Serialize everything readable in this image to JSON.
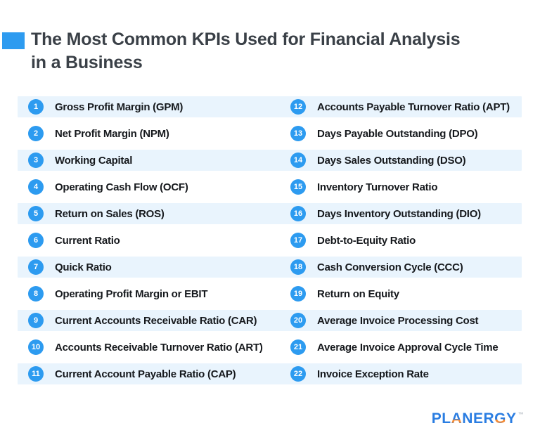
{
  "colors": {
    "accent_blue": "#2D9BF0",
    "row_band": "#E9F4FD",
    "title_text": "#3A4047",
    "item_text": "#16191D",
    "logo_blue": "#2A7DE2",
    "logo_orange": "#F28B38"
  },
  "header": {
    "title_line1": "The Most Common KPIs Used for Financial Analysis",
    "title_line2": "in a Business"
  },
  "kpis": {
    "left": [
      {
        "num": "1",
        "label": "Gross Profit Margin (GPM)"
      },
      {
        "num": "2",
        "label": "Net Profit Margin (NPM)"
      },
      {
        "num": "3",
        "label": "Working Capital"
      },
      {
        "num": "4",
        "label": "Operating Cash Flow (OCF)"
      },
      {
        "num": "5",
        "label": "Return on Sales (ROS)"
      },
      {
        "num": "6",
        "label": "Current Ratio"
      },
      {
        "num": "7",
        "label": "Quick Ratio"
      },
      {
        "num": "8",
        "label": "Operating Profit Margin or EBIT"
      },
      {
        "num": "9",
        "label": "Current Accounts Receivable Ratio (CAR)"
      },
      {
        "num": "10",
        "label": "Accounts Receivable Turnover Ratio (ART)"
      },
      {
        "num": "11",
        "label": "Current Account Payable Ratio (CAP)"
      }
    ],
    "right": [
      {
        "num": "12",
        "label": "Accounts Payable Turnover Ratio (APT)"
      },
      {
        "num": "13",
        "label": "Days Payable Outstanding (DPO)"
      },
      {
        "num": "14",
        "label": "Days Sales Outstanding (DSO)"
      },
      {
        "num": "15",
        "label": "Inventory Turnover Ratio"
      },
      {
        "num": "16",
        "label": "Days Inventory Outstanding (DIO)"
      },
      {
        "num": "17",
        "label": "Debt-to-Equity Ratio"
      },
      {
        "num": "18",
        "label": "Cash Conversion Cycle (CCC)"
      },
      {
        "num": "19",
        "label": "Return on Equity"
      },
      {
        "num": "20",
        "label": "Average Invoice Processing Cost"
      },
      {
        "num": "21",
        "label": "Average Invoice Approval Cycle Time"
      },
      {
        "num": "22",
        "label": "Invoice Exception Rate"
      }
    ]
  },
  "footer": {
    "logo_text": "PLANERGY",
    "logo_tm": "™",
    "logo_accent_letters": [
      "A",
      "G"
    ]
  }
}
